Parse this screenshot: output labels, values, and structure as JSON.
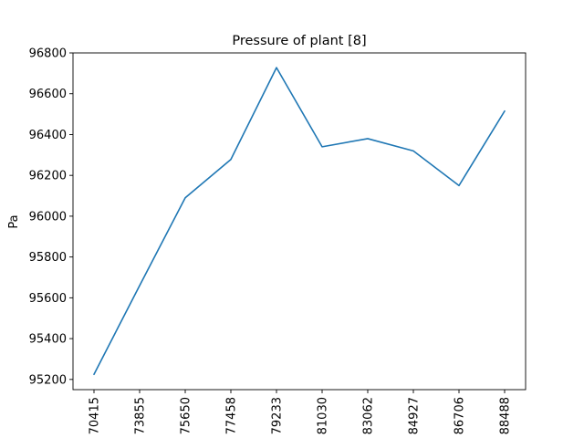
{
  "chart_data": {
    "type": "line",
    "title": "Pressure of plant [8]",
    "xlabel": "",
    "ylabel": "Pa",
    "categories": [
      "70415",
      "73855",
      "75650",
      "77458",
      "79233",
      "81030",
      "83062",
      "84927",
      "86706",
      "88488"
    ],
    "series": [
      {
        "values": [
          95225,
          95660,
          96090,
          96278,
          96728,
          96340,
          96380,
          96320,
          96150,
          96515
        ]
      }
    ],
    "ylim": [
      95150,
      96800
    ],
    "yticks": [
      95200,
      95400,
      95600,
      95800,
      96000,
      96200,
      96400,
      96600,
      96800
    ],
    "grid": false,
    "line_color": "#1f77b4"
  }
}
